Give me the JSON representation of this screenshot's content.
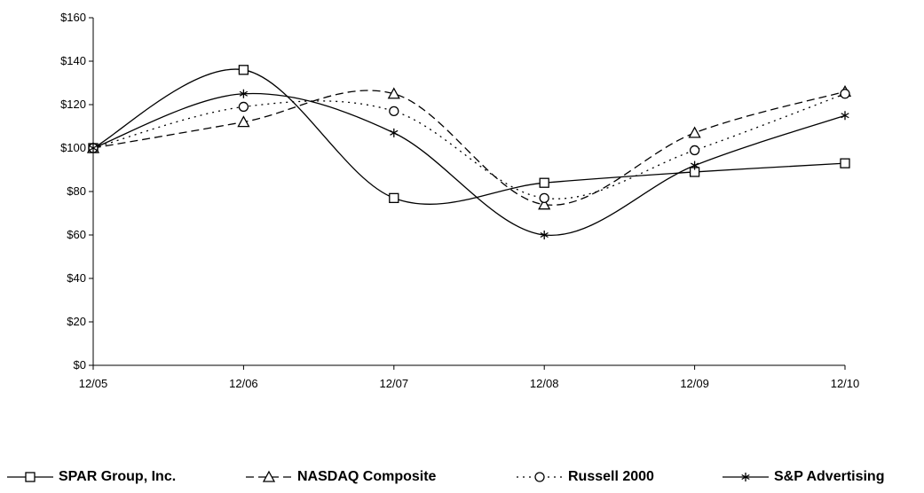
{
  "chart_data": {
    "type": "line",
    "title": "",
    "xlabel": "",
    "ylabel": "",
    "categories": [
      "12/05",
      "12/06",
      "12/07",
      "12/08",
      "12/09",
      "12/10"
    ],
    "y_ticks": [
      "$0",
      "$20",
      "$40",
      "$60",
      "$80",
      "$100",
      "$120",
      "$140",
      "$160"
    ],
    "ylim": [
      0,
      160
    ],
    "grid": false,
    "smooth": true,
    "legend_position": "bottom",
    "series": [
      {
        "name": "SPAR Group, Inc.",
        "values": [
          100,
          136,
          77,
          84,
          89,
          93
        ],
        "marker": "square",
        "dash": "solid",
        "color": "#000000"
      },
      {
        "name": "NASDAQ Composite",
        "values": [
          100,
          112,
          125,
          74,
          107,
          126
        ],
        "marker": "triangle",
        "dash": "dashed",
        "color": "#000000"
      },
      {
        "name": "Russell 2000",
        "values": [
          100,
          119,
          117,
          77,
          99,
          125
        ],
        "marker": "circle",
        "dash": "dotted",
        "color": "#000000"
      },
      {
        "name": "S&P Advertising",
        "values": [
          100,
          125,
          107,
          60,
          92,
          115
        ],
        "marker": "star",
        "dash": "solid",
        "color": "#000000"
      }
    ]
  }
}
